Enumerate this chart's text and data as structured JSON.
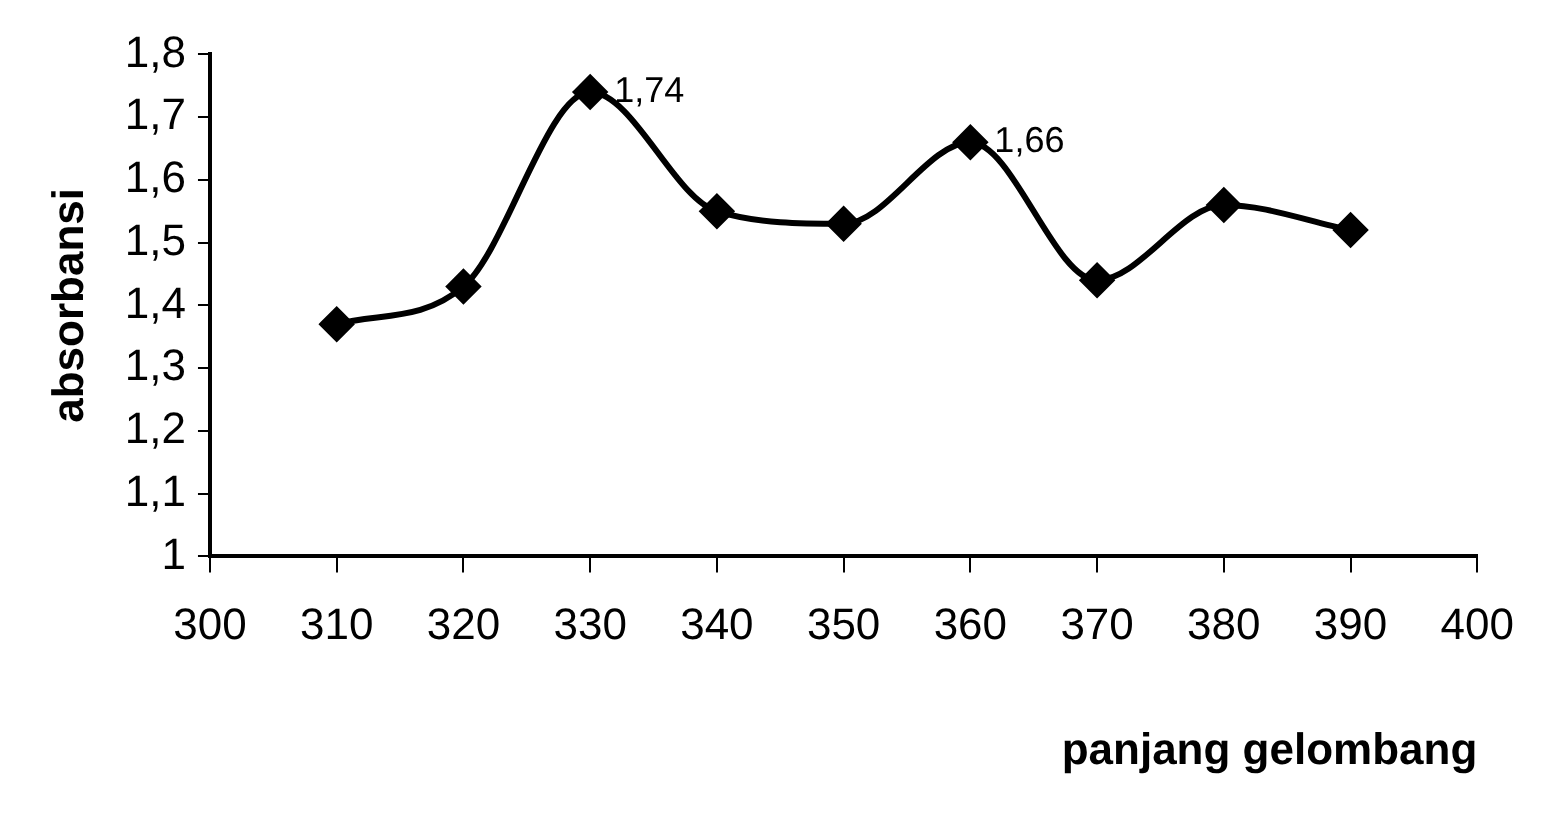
{
  "chart_data": {
    "type": "line",
    "xlabel": "panjang gelombang",
    "ylabel": "absorbansi",
    "x": [
      310,
      320,
      330,
      340,
      350,
      360,
      370,
      380,
      390
    ],
    "values": [
      1.37,
      1.43,
      1.74,
      1.55,
      1.53,
      1.66,
      1.44,
      1.56,
      1.52
    ],
    "color": "#000000",
    "marker": "diamond",
    "grid": false,
    "legend": false,
    "xlim": [
      300,
      400
    ],
    "xticks": [
      300,
      310,
      320,
      330,
      340,
      350,
      360,
      370,
      380,
      390,
      400
    ],
    "ylim": [
      1,
      1.8
    ],
    "yticks": [
      {
        "value": 1,
        "label": "1"
      },
      {
        "value": 1.1,
        "label": "1,1"
      },
      {
        "value": 1.2,
        "label": "1,2"
      },
      {
        "value": 1.3,
        "label": "1,3"
      },
      {
        "value": 1.4,
        "label": "1,4"
      },
      {
        "value": 1.5,
        "label": "1,5"
      },
      {
        "value": 1.6,
        "label": "1,6"
      },
      {
        "value": 1.7,
        "label": "1,7"
      },
      {
        "value": 1.8,
        "label": "1,8"
      }
    ],
    "annotations": [
      {
        "text": "1,74",
        "x": 330,
        "y": 1.74
      },
      {
        "text": "1,66",
        "x": 360,
        "y": 1.66
      }
    ]
  }
}
